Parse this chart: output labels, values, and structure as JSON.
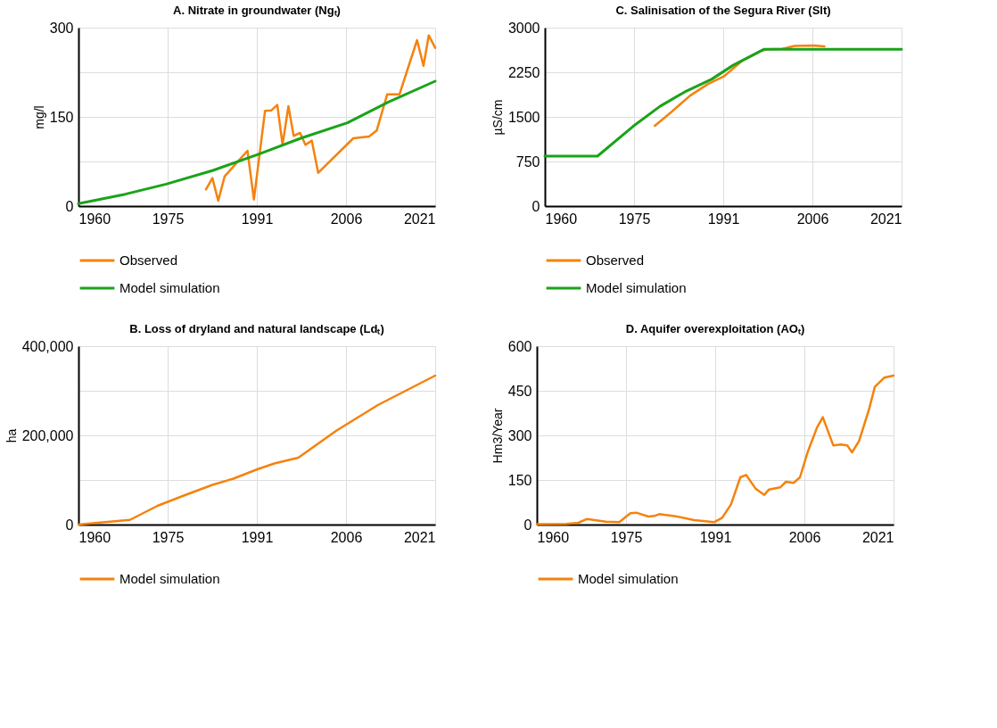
{
  "chart_data": [
    {
      "type": "line",
      "title": "A. Nitrate in groundwater (Ngₜ)",
      "ylabel": "mg/l",
      "xlim": [
        1960,
        2021
      ],
      "xticks": [
        1960,
        {
          "value": 1975.25,
          "label": "1975"
        },
        {
          "value": 1990.5,
          "label": "1991"
        },
        {
          "value": 2005.75,
          "label": "2006"
        },
        2021
      ],
      "ylim": [
        0,
        300
      ],
      "yticks": [
        0,
        {
          "value": 75,
          "label": null
        },
        150,
        {
          "value": 225,
          "label": null
        },
        300
      ],
      "grid": true,
      "legend": "bottom",
      "series": [
        {
          "name": "Observed",
          "color": "#f5820d",
          "x": [
            1981.8,
            1982.9,
            1983.9,
            1985,
            1986.9,
            1988.9,
            1990,
            1991.9,
            1993,
            1994,
            1994.9,
            1995.9,
            1996.8,
            1997.9,
            1998.8,
            1999.9,
            2001,
            2007,
            2009.7,
            2011,
            2012.8,
            2014.9,
            2017.9,
            2019,
            2019.9,
            2021
          ],
          "values": [
            28,
            47,
            9,
            50,
            71,
            93,
            11,
            160,
            161,
            170,
            103,
            168,
            118,
            123,
            103,
            110,
            56,
            114,
            117,
            127,
            188,
            188,
            279,
            236,
            287,
            266
          ]
        },
        {
          "name": "Model simulation",
          "color": "#1aa31a",
          "x": [
            1960,
            1968,
            1975,
            1983,
            1991,
            1998,
            2006,
            2013,
            2021
          ],
          "values": [
            4,
            20,
            37,
            60,
            88,
            114,
            140,
            175,
            210
          ]
        }
      ]
    },
    {
      "type": "line",
      "title": "C. Salinisation of the Segura River (Slt)",
      "ylabel": "µS/cm",
      "xlim": [
        1960,
        2021
      ],
      "xticks": [
        1960,
        {
          "value": 1975.25,
          "label": "1975"
        },
        {
          "value": 1990.5,
          "label": "1991"
        },
        {
          "value": 2005.75,
          "label": "2006"
        },
        2021
      ],
      "ylim": [
        0,
        3000
      ],
      "yticks": [
        0,
        750,
        1500,
        2250,
        3000
      ],
      "grid": true,
      "legend": "bottom",
      "series": [
        {
          "name": "Observed",
          "color": "#f5820d",
          "x": [
            1978.8,
            1981.6,
            1984.8,
            1987.9,
            1990.6,
            1993.8,
            1996.9,
            1998,
            2000.6,
            2002.7,
            2005.9,
            2007.8
          ],
          "values": [
            1350,
            1579,
            1855,
            2053,
            2179,
            2447,
            2605,
            2637,
            2645,
            2692,
            2700,
            2684
          ]
        },
        {
          "name": "Model simulation",
          "color": "#1aa31a",
          "x": [
            1960,
            1969,
            1975.1,
            1979.7,
            1984.2,
            1988.5,
            1992.2,
            1997.5,
            2021
          ],
          "values": [
            840,
            840,
            1342,
            1678,
            1934,
            2132,
            2368,
            2637,
            2637
          ]
        }
      ]
    },
    {
      "type": "line",
      "title": "B. Loss of dryland and natural landscape (Ldₜ)",
      "ylabel": "ha",
      "xlim": [
        1960,
        2021
      ],
      "xticks": [
        1960,
        {
          "value": 1975.25,
          "label": "1975"
        },
        {
          "value": 1990.5,
          "label": "1991"
        },
        {
          "value": 2005.75,
          "label": "2006"
        },
        2021
      ],
      "ylim": [
        0,
        400000
      ],
      "yticks": [
        {
          "value": 0,
          "label": "0"
        },
        {
          "value": 100000,
          "label": null
        },
        {
          "value": 200000,
          "label": "200,000"
        },
        {
          "value": 300000,
          "label": null
        },
        {
          "value": 400000,
          "label": "400,000"
        }
      ],
      "grid": true,
      "legend": "bottom",
      "series": [
        {
          "name": "Model simulation",
          "color": "#f5820d",
          "x": [
            1960,
            1964.1,
            1968.8,
            1973.5,
            1978.2,
            1982.9,
            1986.5,
            1990.6,
            1993.5,
            1997.6,
            2004.1,
            2011.2,
            2021
          ],
          "values": [
            0,
            5000,
            10500,
            42000,
            66000,
            89000,
            103000,
            124000,
            137000,
            150000,
            210500,
            268000,
            334000
          ]
        }
      ]
    },
    {
      "type": "line",
      "title": "D. Aquifer overexploitation (AOₜ)",
      "ylabel": "Hm3/Year",
      "xlim": [
        1960,
        2021
      ],
      "xticks": [
        1960,
        {
          "value": 1975.25,
          "label": "1975"
        },
        {
          "value": 1990.5,
          "label": "1991"
        },
        {
          "value": 2005.75,
          "label": "2006"
        },
        2021
      ],
      "ylim": [
        0,
        600
      ],
      "yticks": [
        0,
        150,
        300,
        450,
        600
      ],
      "grid": true,
      "legend": "bottom",
      "series": [
        {
          "name": "Model simulation",
          "color": "#f5820d",
          "x": [
            1960,
            1965,
            1967.1,
            1968.6,
            1971.8,
            1974.1,
            1976,
            1977,
            1979.1,
            1980.1,
            1980.9,
            1983.8,
            1986.9,
            1990.3,
            1991.7,
            1993.2,
            1994.8,
            1995.8,
            1997.4,
            1998.9,
            1999.7,
            2001.6,
            2002.6,
            2003.9,
            2005,
            2006.3,
            2007.9,
            2008.9,
            2010.7,
            2012,
            2013.1,
            2013.9,
            2015.1,
            2016.8,
            2017.8,
            2019.4,
            2021
          ],
          "values": [
            1.5,
            2,
            6,
            19,
            10,
            8,
            38,
            40,
            27,
            29,
            35,
            28,
            15,
            8,
            23,
            68,
            159,
            167,
            121,
            100,
            118,
            125,
            144,
            140,
            159,
            243,
            326,
            361,
            266,
            269,
            266,
            243,
            281,
            387,
            463,
            494,
            501
          ]
        }
      ]
    }
  ]
}
